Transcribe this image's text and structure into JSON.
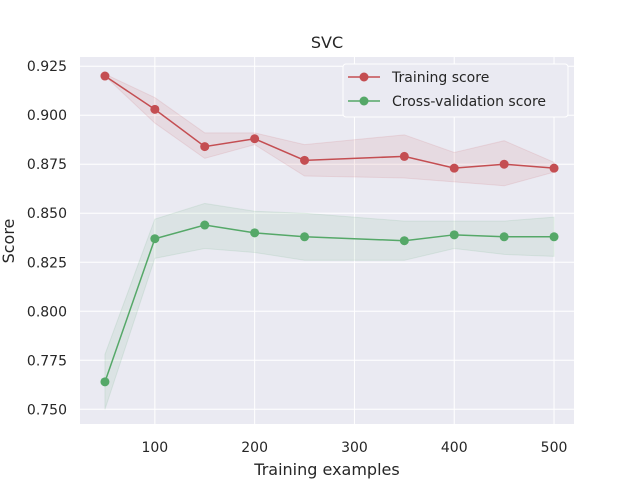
{
  "chart_data": {
    "type": "line",
    "title": "SVC",
    "xlabel": "Training examples",
    "ylabel": "Score",
    "xlim": [
      25,
      520
    ],
    "ylim": [
      0.7425,
      0.9297
    ],
    "xticks": [
      100,
      200,
      300,
      400,
      500
    ],
    "xtick_labels": [
      "100",
      "200",
      "300",
      "400",
      "500"
    ],
    "yticks": [
      0.75,
      0.775,
      0.8,
      0.825,
      0.85,
      0.875,
      0.9,
      0.925
    ],
    "ytick_labels": [
      "0.750",
      "0.775",
      "0.800",
      "0.825",
      "0.850",
      "0.875",
      "0.900",
      "0.925"
    ],
    "grid": true,
    "legend": "top-right",
    "background": "#eaeaf2",
    "x": [
      50,
      100,
      150,
      200,
      250,
      350,
      400,
      450,
      500
    ],
    "series": [
      {
        "name": "Training score",
        "color": "#c44e52",
        "values": [
          0.92,
          0.903,
          0.884,
          0.888,
          0.877,
          0.879,
          0.873,
          0.875,
          0.873
        ],
        "lower": [
          0.92,
          0.896,
          0.878,
          0.885,
          0.869,
          0.868,
          0.866,
          0.864,
          0.871
        ],
        "upper": [
          0.921,
          0.909,
          0.891,
          0.891,
          0.885,
          0.89,
          0.881,
          0.887,
          0.876
        ]
      },
      {
        "name": "Cross-validation score",
        "color": "#55a868",
        "values": [
          0.764,
          0.837,
          0.844,
          0.84,
          0.838,
          0.836,
          0.839,
          0.838,
          0.838
        ],
        "lower": [
          0.75,
          0.827,
          0.832,
          0.83,
          0.826,
          0.826,
          0.832,
          0.829,
          0.828
        ],
        "upper": [
          0.778,
          0.847,
          0.855,
          0.851,
          0.85,
          0.846,
          0.846,
          0.846,
          0.848
        ]
      }
    ]
  }
}
